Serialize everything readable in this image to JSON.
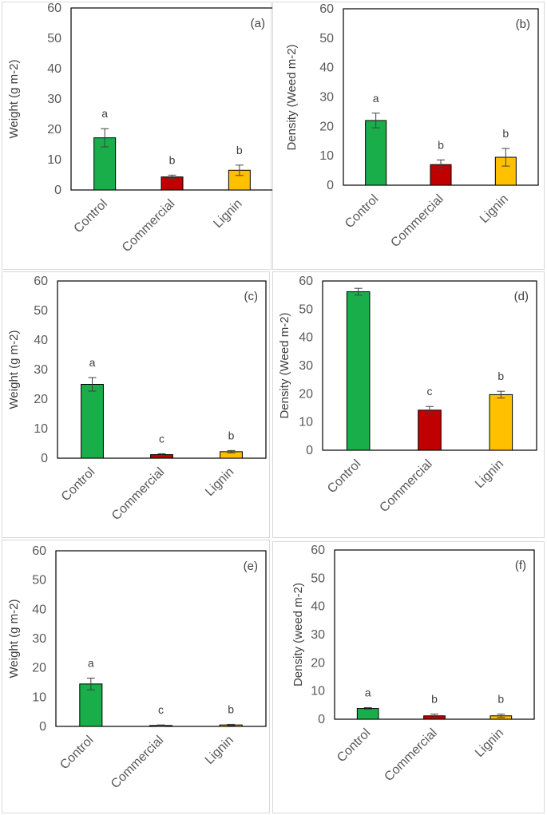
{
  "figure": {
    "colors": {
      "Control": "#1aae4b",
      "Commercial": "#c00000",
      "Lignin": "#ffc000",
      "axis": "#000000",
      "tick_text": "#595959",
      "panel_border": "#d9d9d9",
      "error_bar": "#404040"
    }
  },
  "chart_data": [
    {
      "type": "bar",
      "panel": "(a)",
      "ylabel": "Weight (g m-2)",
      "ylim": [
        0,
        60
      ],
      "yticks": [
        0,
        10,
        20,
        30,
        40,
        50,
        60
      ],
      "categories": [
        "Control",
        "Commercial",
        "Lignin"
      ],
      "values": [
        17.2,
        4.3,
        6.5
      ],
      "errors": [
        3.0,
        0.6,
        1.7
      ],
      "letters": [
        "a",
        "b",
        "b"
      ]
    },
    {
      "type": "bar",
      "panel": "(b)",
      "ylabel": "Density (Weed m-2)",
      "ylim": [
        0,
        60
      ],
      "yticks": [
        0,
        10,
        20,
        30,
        40,
        50,
        60
      ],
      "categories": [
        "Control",
        "Commercial",
        "Lignin"
      ],
      "values": [
        22.0,
        7.0,
        9.5
      ],
      "errors": [
        2.5,
        1.6,
        3.0
      ],
      "letters": [
        "a",
        "b",
        "b"
      ]
    },
    {
      "type": "bar",
      "panel": "(c)",
      "ylabel": "Weight (g m-2)",
      "ylim": [
        0,
        60
      ],
      "yticks": [
        0,
        10,
        20,
        30,
        40,
        50,
        60
      ],
      "categories": [
        "Control",
        "Commercial",
        "Lignin"
      ],
      "values": [
        25.0,
        1.2,
        2.2
      ],
      "errors": [
        2.3,
        0.3,
        0.4
      ],
      "letters": [
        "a",
        "c",
        "b"
      ]
    },
    {
      "type": "bar",
      "panel": "(d)",
      "ylabel": "Density (Weed m-2)",
      "ylim": [
        0,
        60
      ],
      "yticks": [
        0,
        10,
        20,
        30,
        40,
        50,
        60
      ],
      "categories": [
        "Control",
        "Commercial",
        "Lignin"
      ],
      "values": [
        56.2,
        14.2,
        19.7
      ],
      "errors": [
        1.2,
        1.3,
        1.2
      ],
      "letters": [
        "",
        "c",
        "b"
      ]
    },
    {
      "type": "bar",
      "panel": "(e)",
      "ylabel": "Weight (g m-2)",
      "ylim": [
        0,
        60
      ],
      "yticks": [
        0,
        10,
        20,
        30,
        40,
        50,
        60
      ],
      "categories": [
        "Control",
        "Commercial",
        "Lignin"
      ],
      "values": [
        14.5,
        0.3,
        0.5
      ],
      "errors": [
        2.0,
        0.2,
        0.2
      ],
      "letters": [
        "a",
        "c",
        "b"
      ]
    },
    {
      "type": "bar",
      "panel": "(f)",
      "ylabel": "Density (weed m-2)",
      "ylim": [
        0,
        60
      ],
      "yticks": [
        0,
        10,
        20,
        30,
        40,
        50,
        60
      ],
      "categories": [
        "Control",
        "Commercial",
        "Lignin"
      ],
      "values": [
        3.8,
        1.2,
        1.2
      ],
      "errors": [
        0.3,
        0.6,
        0.6
      ],
      "letters": [
        "a",
        "b",
        "b"
      ]
    }
  ]
}
